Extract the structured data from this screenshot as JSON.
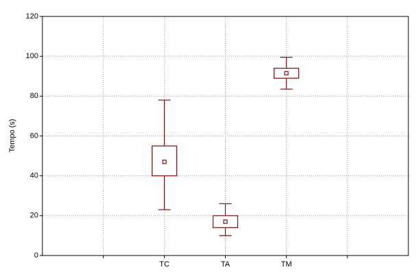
{
  "chart_data": {
    "type": "box",
    "y_label": "Tempo (s)",
    "categories": [
      null,
      "TC",
      "TA",
      "TM",
      null
    ],
    "whisker_low": [
      null,
      23,
      10,
      83.5,
      null
    ],
    "q1": [
      null,
      40,
      14,
      89,
      null
    ],
    "center": [
      null,
      47,
      17,
      91.5,
      null
    ],
    "q3": [
      null,
      55,
      20,
      94,
      null
    ],
    "whisker_high": [
      null,
      78,
      26,
      99.5,
      null
    ],
    "color": "#8b1a1a",
    "ylim": [
      0,
      120
    ],
    "yticks": [
      0,
      20,
      40,
      60,
      80,
      100,
      120
    ],
    "grid": true
  }
}
